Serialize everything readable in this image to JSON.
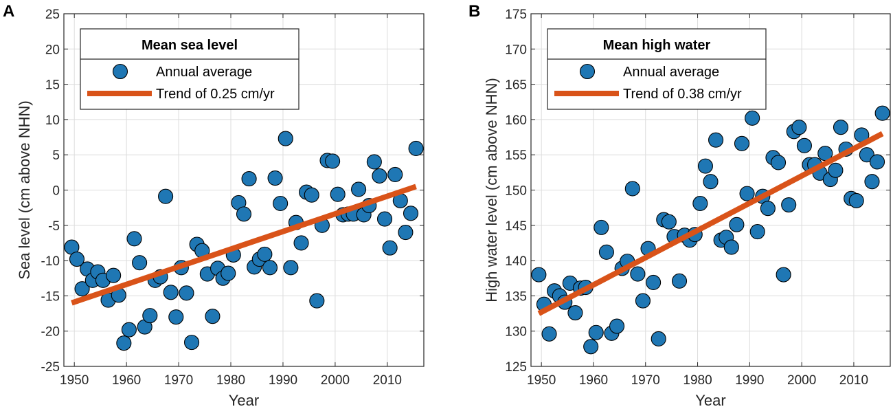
{
  "colors": {
    "marker": "#1f77b4",
    "marker_edge": "#000000",
    "trend": "#d95319",
    "grid": "#dcdcdc",
    "axis": "#262626"
  },
  "chart_data": [
    {
      "panel": "A",
      "type": "scatter",
      "legend_title": "Mean sea level",
      "legend_labels": [
        "Annual average",
        "Trend of 0.25 cm/yr"
      ],
      "xlabel": "Year",
      "ylabel": "Sea level (cm above NHN)",
      "xlim": [
        1948,
        2017
      ],
      "ylim": [
        -25,
        25
      ],
      "xticks": [
        1950,
        1960,
        1970,
        1980,
        1990,
        2000,
        2010
      ],
      "yticks": [
        -25,
        -20,
        -15,
        -10,
        -5,
        0,
        5,
        10,
        15,
        20,
        25
      ],
      "legend_position": "top-left",
      "grid": true,
      "points": [
        [
          1949.5,
          -8.1
        ],
        [
          1950.5,
          -9.8
        ],
        [
          1951.5,
          -14.0
        ],
        [
          1952.5,
          -11.2
        ],
        [
          1953.5,
          -12.8
        ],
        [
          1954.5,
          -11.6
        ],
        [
          1955.5,
          -12.8
        ],
        [
          1956.5,
          -15.6
        ],
        [
          1957.5,
          -12.1
        ],
        [
          1958.5,
          -14.9
        ],
        [
          1959.5,
          -21.7
        ],
        [
          1960.5,
          -19.8
        ],
        [
          1961.5,
          -6.9
        ],
        [
          1962.5,
          -10.3
        ],
        [
          1963.5,
          -19.4
        ],
        [
          1964.5,
          -17.8
        ],
        [
          1965.5,
          -12.8
        ],
        [
          1966.5,
          -12.3
        ],
        [
          1967.5,
          -0.9
        ],
        [
          1968.5,
          -14.5
        ],
        [
          1969.5,
          -18.0
        ],
        [
          1970.5,
          -11.0
        ],
        [
          1971.5,
          -14.6
        ],
        [
          1972.5,
          -21.6
        ],
        [
          1973.5,
          -7.7
        ],
        [
          1974.5,
          -8.6
        ],
        [
          1975.5,
          -11.9
        ],
        [
          1976.5,
          -17.9
        ],
        [
          1977.5,
          -11.1
        ],
        [
          1978.5,
          -12.5
        ],
        [
          1979.5,
          -11.8
        ],
        [
          1980.5,
          -9.2
        ],
        [
          1981.5,
          -1.8
        ],
        [
          1982.5,
          -3.4
        ],
        [
          1983.5,
          1.6
        ],
        [
          1984.5,
          -10.9
        ],
        [
          1985.5,
          -9.8
        ],
        [
          1986.5,
          -9.1
        ],
        [
          1987.5,
          -11.0
        ],
        [
          1988.5,
          1.7
        ],
        [
          1989.5,
          -1.9
        ],
        [
          1990.5,
          7.3
        ],
        [
          1991.5,
          -11.0
        ],
        [
          1992.5,
          -4.6
        ],
        [
          1993.5,
          -7.5
        ],
        [
          1994.5,
          -0.3
        ],
        [
          1995.5,
          -0.7
        ],
        [
          1996.5,
          -15.7
        ],
        [
          1997.5,
          -5.0
        ],
        [
          1998.5,
          4.2
        ],
        [
          1999.5,
          4.1
        ],
        [
          2000.5,
          -0.6
        ],
        [
          2001.5,
          -3.5
        ],
        [
          2002.5,
          -3.4
        ],
        [
          2003.5,
          -3.4
        ],
        [
          2004.5,
          0.1
        ],
        [
          2005.5,
          -3.5
        ],
        [
          2006.5,
          -2.2
        ],
        [
          2007.5,
          4.0
        ],
        [
          2008.5,
          2.0
        ],
        [
          2009.5,
          -4.1
        ],
        [
          2010.5,
          -8.2
        ],
        [
          2011.5,
          2.2
        ],
        [
          2012.5,
          -1.5
        ],
        [
          2013.5,
          -6.0
        ],
        [
          2014.5,
          -3.3
        ],
        [
          2015.5,
          5.9
        ]
      ],
      "trend": {
        "x": [
          1949.5,
          2015.5
        ],
        "y": [
          -16.0,
          0.5
        ]
      }
    },
    {
      "panel": "B",
      "type": "scatter",
      "legend_title": "Mean high water",
      "legend_labels": [
        "Annual average",
        "Trend of 0.38 cm/yr"
      ],
      "xlabel": "Year",
      "ylabel": "High water level (cm above NHN)",
      "xlim": [
        1948,
        2017
      ],
      "ylim": [
        125,
        175
      ],
      "xticks": [
        1950,
        1960,
        1970,
        1980,
        1990,
        2000,
        2010
      ],
      "yticks": [
        125,
        130,
        135,
        140,
        145,
        150,
        155,
        160,
        165,
        170,
        175
      ],
      "legend_position": "top-left",
      "grid": true,
      "points": [
        [
          1949.5,
          138.0
        ],
        [
          1950.5,
          133.8
        ],
        [
          1951.5,
          129.6
        ],
        [
          1952.5,
          135.7
        ],
        [
          1953.5,
          135.0
        ],
        [
          1954.5,
          134.1
        ],
        [
          1955.5,
          136.8
        ],
        [
          1956.5,
          132.6
        ],
        [
          1957.5,
          136.1
        ],
        [
          1958.5,
          136.2
        ],
        [
          1959.5,
          127.8
        ],
        [
          1960.5,
          129.8
        ],
        [
          1961.5,
          144.7
        ],
        [
          1962.5,
          141.2
        ],
        [
          1963.5,
          129.7
        ],
        [
          1964.5,
          130.7
        ],
        [
          1965.5,
          138.9
        ],
        [
          1966.5,
          139.9
        ],
        [
          1967.5,
          150.2
        ],
        [
          1968.5,
          138.1
        ],
        [
          1969.5,
          134.3
        ],
        [
          1970.5,
          141.7
        ],
        [
          1971.5,
          136.9
        ],
        [
          1972.5,
          128.9
        ],
        [
          1973.5,
          145.8
        ],
        [
          1974.5,
          145.5
        ],
        [
          1975.5,
          143.4
        ],
        [
          1976.5,
          137.1
        ],
        [
          1977.5,
          143.6
        ],
        [
          1978.5,
          142.9
        ],
        [
          1979.5,
          143.7
        ],
        [
          1980.5,
          148.1
        ],
        [
          1981.5,
          153.4
        ],
        [
          1982.5,
          151.2
        ],
        [
          1983.5,
          157.1
        ],
        [
          1984.5,
          142.9
        ],
        [
          1985.5,
          143.3
        ],
        [
          1986.5,
          141.9
        ],
        [
          1987.5,
          145.1
        ],
        [
          1988.5,
          156.6
        ],
        [
          1989.5,
          149.5
        ],
        [
          1990.5,
          160.2
        ],
        [
          1991.5,
          144.1
        ],
        [
          1992.5,
          149.1
        ],
        [
          1993.5,
          147.4
        ],
        [
          1994.5,
          154.6
        ],
        [
          1995.5,
          153.9
        ],
        [
          1996.5,
          138.0
        ],
        [
          1997.5,
          147.9
        ],
        [
          1998.5,
          158.3
        ],
        [
          1999.5,
          158.9
        ],
        [
          2000.5,
          156.3
        ],
        [
          2001.5,
          153.6
        ],
        [
          2002.5,
          153.6
        ],
        [
          2003.5,
          152.4
        ],
        [
          2004.5,
          155.2
        ],
        [
          2005.5,
          151.5
        ],
        [
          2006.5,
          152.8
        ],
        [
          2007.5,
          158.9
        ],
        [
          2008.5,
          155.8
        ],
        [
          2009.5,
          148.8
        ],
        [
          2010.5,
          148.5
        ],
        [
          2011.5,
          157.8
        ],
        [
          2012.5,
          155.0
        ],
        [
          2013.5,
          151.2
        ],
        [
          2014.5,
          154.0
        ],
        [
          2015.5,
          160.9
        ]
      ],
      "trend": {
        "x": [
          1949.5,
          2015.5
        ],
        "y": [
          132.5,
          158.0
        ]
      }
    }
  ]
}
